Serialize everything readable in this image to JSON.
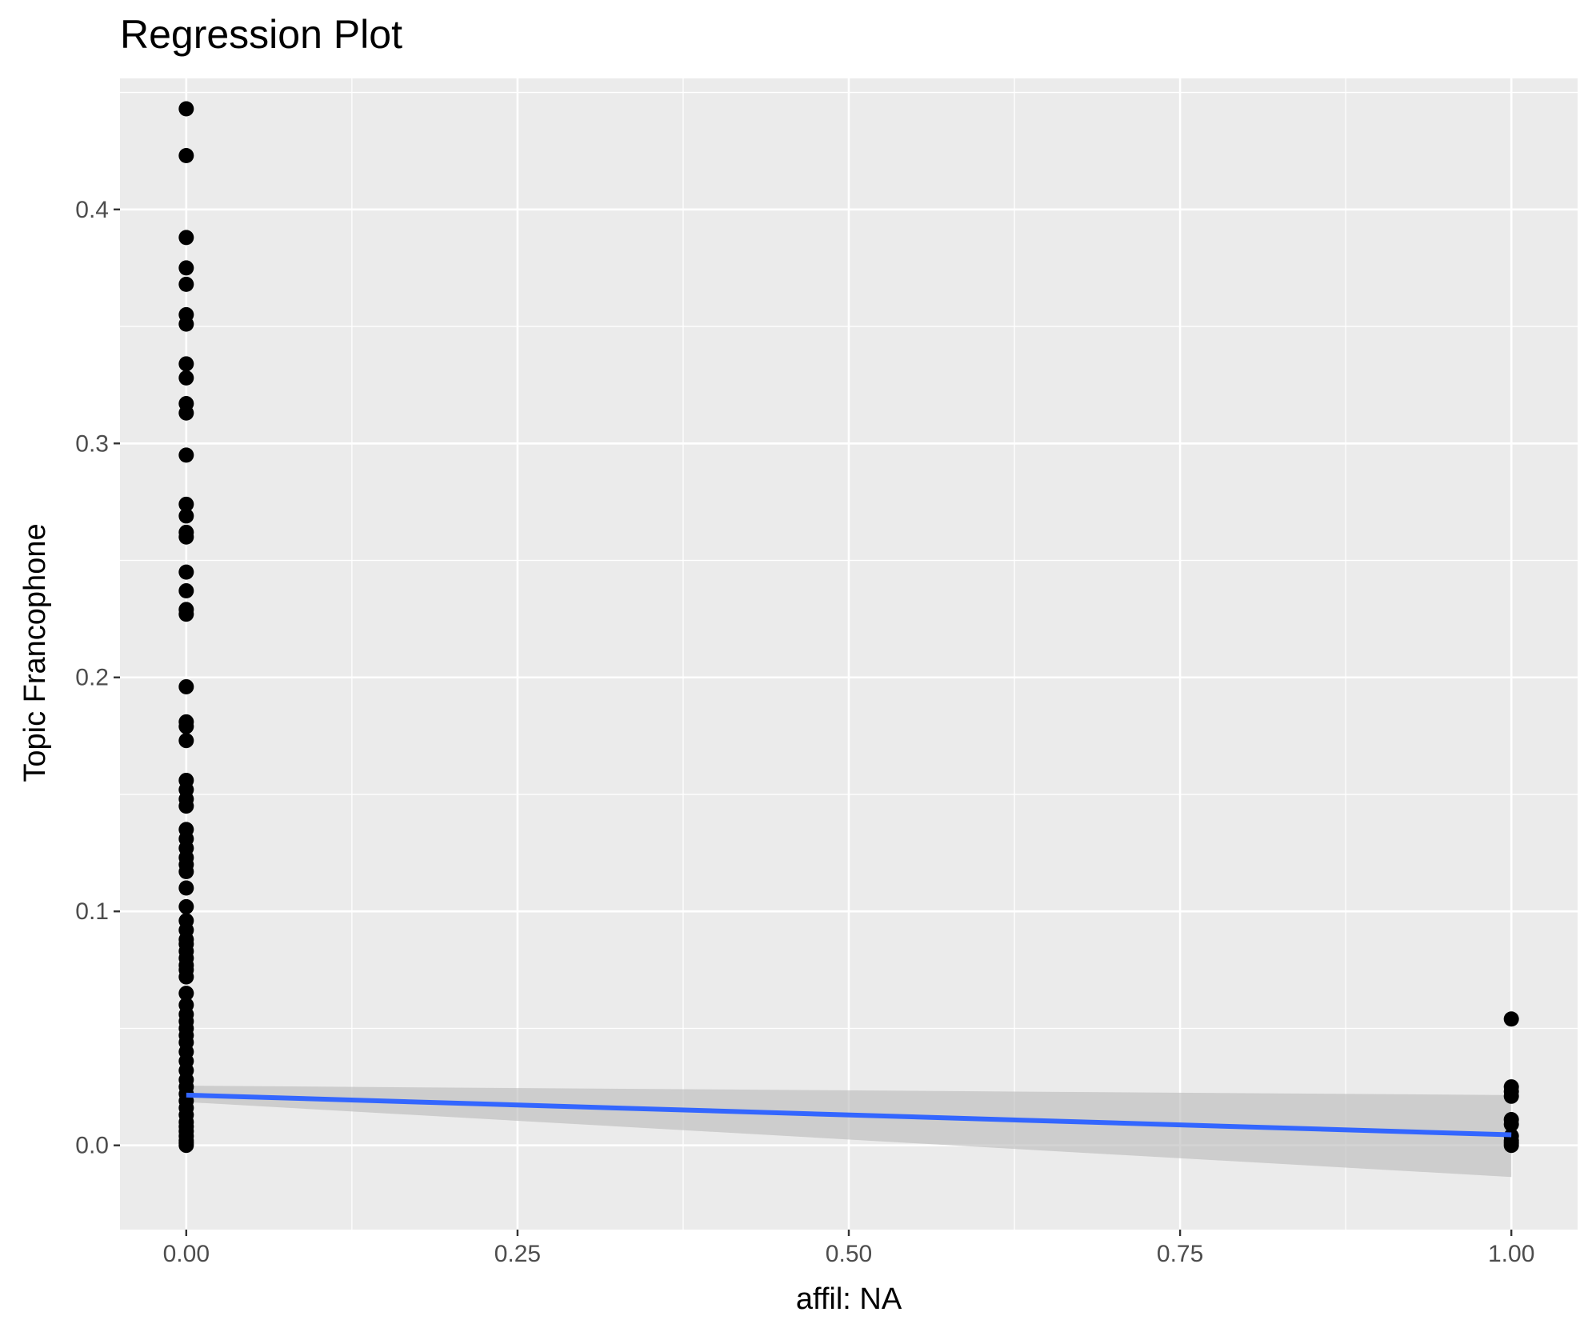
{
  "chart_data": {
    "type": "scatter",
    "title": "Regression Plot",
    "xlabel": "affil: NA",
    "ylabel": "Topic Francophone",
    "xlim": [
      -0.05,
      1.05
    ],
    "ylim": [
      -0.036,
      0.456
    ],
    "x_ticks": [
      0.0,
      0.25,
      0.5,
      0.75,
      1.0
    ],
    "x_tick_labels": [
      "0.00",
      "0.25",
      "0.50",
      "0.75",
      "1.00"
    ],
    "y_ticks": [
      0.0,
      0.1,
      0.2,
      0.3,
      0.4
    ],
    "y_tick_labels": [
      "0.0",
      "0.1",
      "0.2",
      "0.3",
      "0.4"
    ],
    "grid": true,
    "colors": {
      "panel": "#ebebeb",
      "grid": "#ffffff",
      "points": "#000000",
      "fit_line": "#3366ff",
      "ribbon": "#bdbdbd"
    },
    "series": [
      {
        "x": 0,
        "y": [
          0.443,
          0.423,
          0.388,
          0.375,
          0.368,
          0.355,
          0.351,
          0.334,
          0.328,
          0.317,
          0.313,
          0.295,
          0.274,
          0.269,
          0.262,
          0.26,
          0.245,
          0.237,
          0.229,
          0.227,
          0.196,
          0.181,
          0.179,
          0.173,
          0.156,
          0.152,
          0.148,
          0.145,
          0.135,
          0.131,
          0.127,
          0.123,
          0.12,
          0.117,
          0.11,
          0.102,
          0.096,
          0.092,
          0.088,
          0.086,
          0.083,
          0.08,
          0.077,
          0.075,
          0.072,
          0.065,
          0.06,
          0.056,
          0.053,
          0.05,
          0.047,
          0.044,
          0.04,
          0.036,
          0.032,
          0.028,
          0.025,
          0.022,
          0.019,
          0.016,
          0.013,
          0.01,
          0.008,
          0.006,
          0.004,
          0.002,
          0.001,
          0.0
        ]
      },
      {
        "x": 1,
        "y": [
          0.054,
          0.025,
          0.023,
          0.021,
          0.011,
          0.009,
          0.004,
          0.002,
          0.001,
          0.0
        ]
      }
    ],
    "fit": {
      "x": [
        0,
        1
      ],
      "y": [
        0.0215,
        0.0045
      ],
      "ci_lower": [
        0.0185,
        -0.0135
      ],
      "ci_upper": [
        0.0255,
        0.0215
      ]
    }
  }
}
